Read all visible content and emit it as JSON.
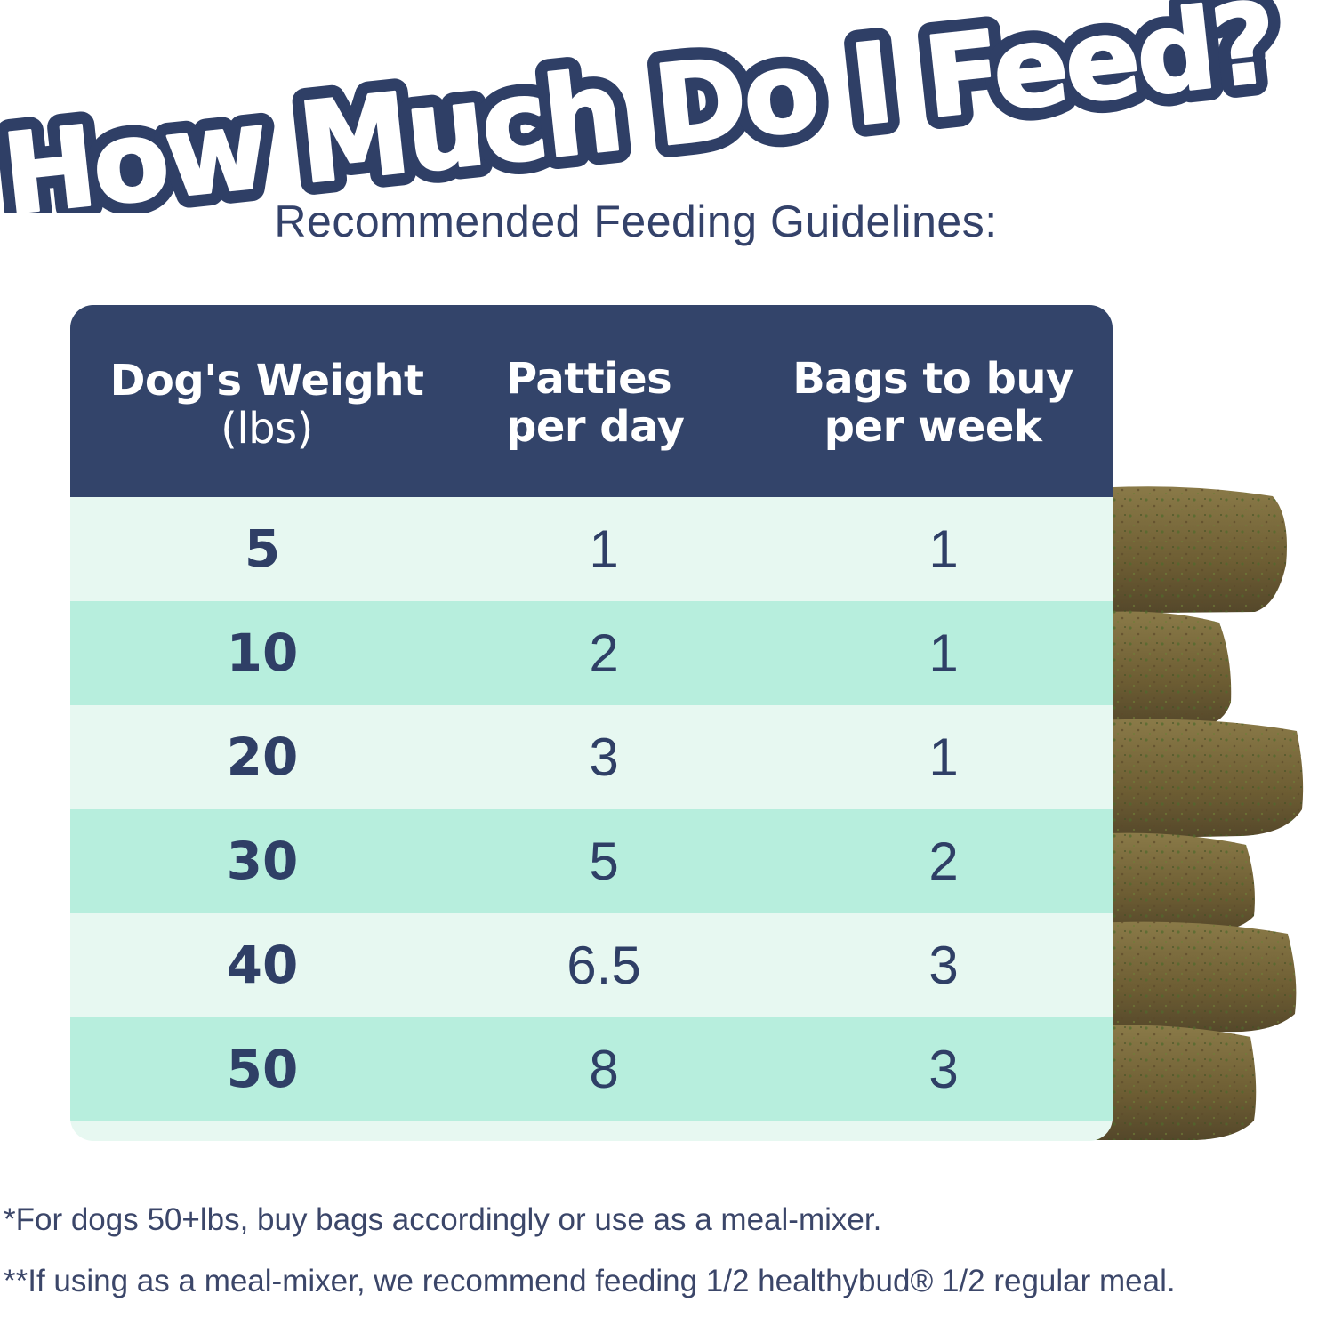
{
  "headline": "How Much Do I Feed?",
  "subtitle": "Recommended Feeding Guidelines:",
  "table": {
    "headers": {
      "weight_line1": "Dog's Weight",
      "weight_line2": "(lbs)",
      "patties_line1": "Patties",
      "patties_line2": "per day",
      "bags_line1": "Bags to buy",
      "bags_line2": "per week"
    },
    "rows": [
      {
        "weight": "5",
        "patties": "1",
        "bags": "1"
      },
      {
        "weight": "10",
        "patties": "2",
        "bags": "1"
      },
      {
        "weight": "20",
        "patties": "3",
        "bags": "1"
      },
      {
        "weight": "30",
        "patties": "5",
        "bags": "2"
      },
      {
        "weight": "40",
        "patties": "6.5",
        "bags": "3"
      },
      {
        "weight": "50",
        "patties": "8",
        "bags": "3"
      }
    ]
  },
  "footnotes": {
    "note1": "*For dogs 50+lbs, buy bags accordingly or use as a meal-mixer.",
    "note2": "**If using as a meal-mixer, we recommend feeding 1/2 healthybud® 1/2 regular meal."
  },
  "colors": {
    "navy": "#33446a",
    "row_light": "#e7f8f1",
    "row_dark": "#b7eedd",
    "patty_brown": "#7a6a3e"
  },
  "image": {
    "name": "stacked-dog-food-patties"
  }
}
